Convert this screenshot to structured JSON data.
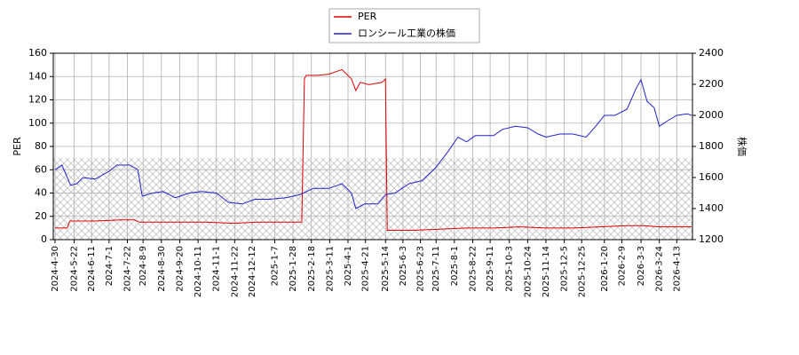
{
  "chart_data": {
    "type": "line",
    "y_label": "PER",
    "y2_label": "株価",
    "xlim": [
      "2024-4-28",
      "2026-5-1"
    ],
    "xticks": [
      "2024-4-30",
      "2024-5-22",
      "2024-6-11",
      "2024-7-1",
      "2024-7-22",
      "2024-8-9",
      "2024-8-30",
      "2024-9-20",
      "2024-10-11",
      "2024-11-1",
      "2024-11-22",
      "2024-12-12",
      "2025-1-7",
      "2025-1-28",
      "2025-2-18",
      "2025-3-11",
      "2025-4-1",
      "2025-4-21",
      "2025-5-14",
      "2025-6-3",
      "2025-6-23",
      "2025-7-11",
      "2025-8-1",
      "2025-8-22",
      "2025-9-11",
      "2025-10-3",
      "2025-10-24",
      "2025-11-14",
      "2025-12-5",
      "2025-12-25",
      "2026-1-20",
      "2026-2-9",
      "2026-3-3",
      "2026-3-24",
      "2026-4-13"
    ],
    "ylim": [
      0,
      160
    ],
    "yticks": [
      0,
      20,
      40,
      60,
      80,
      100,
      120,
      140,
      160
    ],
    "y2lim": [
      1200,
      2400
    ],
    "y2ticks": [
      1200,
      1400,
      1600,
      1800,
      2000,
      2200,
      2400
    ],
    "grid": true,
    "shaded_range": [
      0,
      70
    ],
    "series": [
      {
        "name": "PER",
        "color": "#dd0000",
        "x": [
          "2024-4-30",
          "2024-5-14",
          "2024-5-17",
          "2024-6-15",
          "2024-7-15",
          "2024-7-30",
          "2024-8-5",
          "2024-9-15",
          "2024-10-20",
          "2024-11-20",
          "2024-12-20",
          "2025-1-20",
          "2025-2-7",
          "2025-2-10",
          "2025-2-12",
          "2025-2-25",
          "2025-3-10",
          "2025-3-25",
          "2025-4-5",
          "2025-4-10",
          "2025-4-15",
          "2025-4-25",
          "2025-5-10",
          "2025-5-14",
          "2025-5-16",
          "2025-6-15",
          "2025-7-15",
          "2025-8-15",
          "2025-9-15",
          "2025-10-15",
          "2025-11-15",
          "2025-12-15",
          "2026-1-15",
          "2026-2-15",
          "2026-3-5",
          "2026-3-24",
          "2026-4-13",
          "2026-4-30"
        ],
        "values": [
          10,
          10,
          16,
          16,
          17,
          17,
          15,
          15,
          15,
          14,
          15,
          15,
          15,
          138,
          141,
          141,
          142,
          146,
          138,
          128,
          135,
          133,
          135,
          138,
          8,
          8,
          9,
          10,
          10,
          11,
          10,
          10,
          11,
          12,
          12,
          11,
          11,
          11
        ]
      },
      {
        "name": "ロンシール工業の株価",
        "color": "#2222cc",
        "axis": "y2",
        "x": [
          "2024-4-30",
          "2024-5-8",
          "2024-5-18",
          "2024-5-25",
          "2024-6-1",
          "2024-6-15",
          "2024-7-1",
          "2024-7-10",
          "2024-7-25",
          "2024-8-3",
          "2024-8-8",
          "2024-8-20",
          "2024-9-1",
          "2024-9-15",
          "2024-10-1",
          "2024-10-15",
          "2024-11-1",
          "2024-11-15",
          "2024-12-1",
          "2024-12-15",
          "2025-1-1",
          "2025-1-20",
          "2025-2-5",
          "2025-2-20",
          "2025-3-10",
          "2025-3-25",
          "2025-4-5",
          "2025-4-10",
          "2025-4-20",
          "2025-5-5",
          "2025-5-14",
          "2025-5-25",
          "2025-6-10",
          "2025-6-25",
          "2025-7-10",
          "2025-7-25",
          "2025-8-5",
          "2025-8-15",
          "2025-8-25",
          "2025-9-15",
          "2025-9-25",
          "2025-10-10",
          "2025-10-24",
          "2025-11-5",
          "2025-11-14",
          "2025-11-30",
          "2025-12-15",
          "2025-12-30",
          "2026-1-10",
          "2026-1-20",
          "2026-2-1",
          "2026-2-15",
          "2026-2-25",
          "2026-3-3",
          "2026-3-10",
          "2026-3-18",
          "2026-3-24",
          "2026-4-1",
          "2026-4-13",
          "2026-4-25",
          "2026-4-30"
        ],
        "values": [
          1650,
          1680,
          1550,
          1560,
          1600,
          1590,
          1640,
          1680,
          1680,
          1650,
          1480,
          1500,
          1510,
          1470,
          1500,
          1510,
          1500,
          1440,
          1430,
          1460,
          1460,
          1470,
          1490,
          1530,
          1530,
          1560,
          1500,
          1400,
          1430,
          1430,
          1490,
          1500,
          1560,
          1580,
          1660,
          1770,
          1860,
          1830,
          1870,
          1870,
          1910,
          1930,
          1920,
          1880,
          1860,
          1880,
          1880,
          1860,
          1930,
          2000,
          2000,
          2040,
          2170,
          2230,
          2090,
          2050,
          1930,
          1960,
          2000,
          2010,
          2000
        ]
      }
    ]
  }
}
